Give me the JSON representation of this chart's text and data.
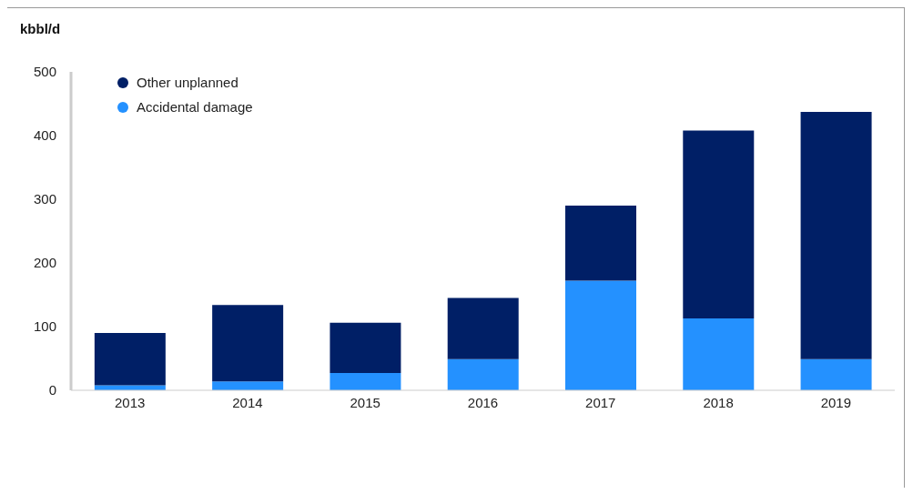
{
  "chart_data": {
    "type": "bar",
    "ylabel": "kbbl/d",
    "categories": [
      "2013",
      "2014",
      "2015",
      "2016",
      "2017",
      "2018",
      "2019"
    ],
    "series": [
      {
        "name": "Accidental damage",
        "color": "#2491ff",
        "values": [
          8,
          14,
          27,
          49,
          172,
          113,
          49
        ]
      },
      {
        "name": "Other unplanned",
        "color": "#001f66",
        "values": [
          82,
          120,
          79,
          96,
          118,
          295,
          388
        ]
      }
    ],
    "stacked": true,
    "ylim": [
      0,
      500
    ],
    "yticks": [
      0,
      100,
      200,
      300,
      400,
      500
    ],
    "grid": false,
    "legend": "top left"
  }
}
